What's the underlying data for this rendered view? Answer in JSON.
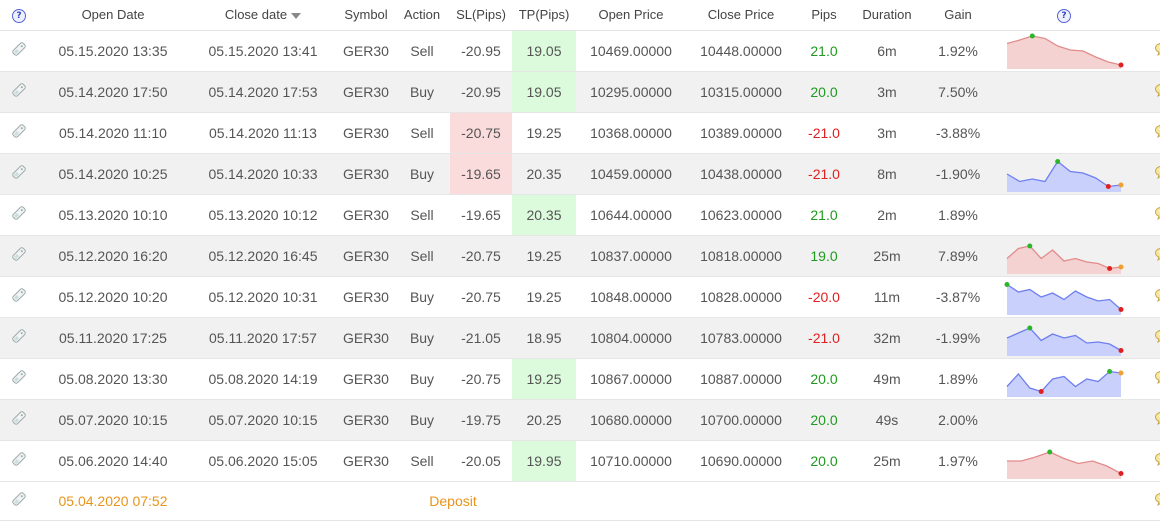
{
  "header": {
    "open_date": "Open Date",
    "close_date": "Close date",
    "symbol": "Symbol",
    "action": "Action",
    "sl": "SL(Pips)",
    "tp": "TP(Pips)",
    "open_price": "Open Price",
    "close_price": "Close Price",
    "pips": "Pips",
    "duration": "Duration",
    "gain": "Gain",
    "help": "?"
  },
  "rows": [
    {
      "open": "05.15.2020 13:35",
      "close": "05.15.2020 13:41",
      "symbol": "GER30",
      "action": "Sell",
      "sl": "-20.95",
      "tp": "19.05",
      "open_price": "10469.00000",
      "close_price": "10448.00000",
      "pips": "21.0",
      "duration": "6m",
      "gain": "1.92%",
      "hl": "tp",
      "pips_sign": "pos",
      "spark": {
        "color": "red",
        "points": [
          45,
          52,
          60,
          55,
          40,
          32,
          30,
          18,
          8,
          2
        ]
      }
    },
    {
      "open": "05.14.2020 17:50",
      "close": "05.14.2020 17:53",
      "symbol": "GER30",
      "action": "Buy",
      "sl": "-20.95",
      "tp": "19.05",
      "open_price": "10295.00000",
      "close_price": "10315.00000",
      "pips": "20.0",
      "duration": "3m",
      "gain": "7.50%",
      "hl": "tp",
      "pips_sign": "pos",
      "spark": null
    },
    {
      "open": "05.14.2020 11:10",
      "close": "05.14.2020 11:13",
      "symbol": "GER30",
      "action": "Sell",
      "sl": "-20.75",
      "tp": "19.25",
      "open_price": "10368.00000",
      "close_price": "10389.00000",
      "pips": "-21.0",
      "duration": "3m",
      "gain": "-3.88%",
      "hl": "sl",
      "pips_sign": "neg",
      "spark": null
    },
    {
      "open": "05.14.2020 10:25",
      "close": "05.14.2020 10:33",
      "symbol": "GER30",
      "action": "Buy",
      "sl": "-19.65",
      "tp": "20.35",
      "open_price": "10459.00000",
      "close_price": "10438.00000",
      "pips": "-21.0",
      "duration": "8m",
      "gain": "-1.90%",
      "hl": "sl",
      "pips_sign": "neg",
      "spark": {
        "color": "blue",
        "points": [
          30,
          15,
          20,
          15,
          55,
          35,
          32,
          22,
          5,
          8
        ]
      }
    },
    {
      "open": "05.13.2020 10:10",
      "close": "05.13.2020 10:12",
      "symbol": "GER30",
      "action": "Sell",
      "sl": "-19.65",
      "tp": "20.35",
      "open_price": "10644.00000",
      "close_price": "10623.00000",
      "pips": "21.0",
      "duration": "2m",
      "gain": "1.89%",
      "hl": "tp",
      "pips_sign": "pos",
      "spark": null
    },
    {
      "open": "05.12.2020 16:20",
      "close": "05.12.2020 16:45",
      "symbol": "GER30",
      "action": "Sell",
      "sl": "-20.75",
      "tp": "19.25",
      "open_price": "10837.00000",
      "close_price": "10818.00000",
      "pips": "19.0",
      "duration": "25m",
      "gain": "7.89%",
      "hl": "",
      "pips_sign": "pos",
      "spark": {
        "color": "red",
        "points": [
          25,
          45,
          50,
          25,
          42,
          20,
          25,
          18,
          15,
          5,
          8
        ]
      }
    },
    {
      "open": "05.12.2020 10:20",
      "close": "05.12.2020 10:31",
      "symbol": "GER30",
      "action": "Buy",
      "sl": "-20.75",
      "tp": "19.25",
      "open_price": "10848.00000",
      "close_price": "10828.00000",
      "pips": "-20.0",
      "duration": "11m",
      "gain": "-3.87%",
      "hl": "",
      "pips_sign": "neg",
      "spark": {
        "color": "blue",
        "points": [
          55,
          40,
          45,
          30,
          38,
          25,
          42,
          30,
          22,
          25,
          5
        ]
      }
    },
    {
      "open": "05.11.2020 17:25",
      "close": "05.11.2020 17:57",
      "symbol": "GER30",
      "action": "Buy",
      "sl": "-21.05",
      "tp": "18.95",
      "open_price": "10804.00000",
      "close_price": "10783.00000",
      "pips": "-21.0",
      "duration": "32m",
      "gain": "-1.99%",
      "hl": "",
      "pips_sign": "neg",
      "spark": {
        "color": "blue",
        "points": [
          30,
          40,
          50,
          25,
          38,
          30,
          35,
          20,
          22,
          18,
          5
        ]
      }
    },
    {
      "open": "05.08.2020 13:30",
      "close": "05.08.2020 14:19",
      "symbol": "GER30",
      "action": "Buy",
      "sl": "-20.75",
      "tp": "19.25",
      "open_price": "10867.00000",
      "close_price": "10887.00000",
      "pips": "20.0",
      "duration": "49m",
      "gain": "1.89%",
      "hl": "tp",
      "pips_sign": "pos",
      "spark": {
        "color": "blue",
        "points": [
          15,
          40,
          12,
          5,
          30,
          35,
          15,
          30,
          25,
          45,
          42
        ]
      }
    },
    {
      "open": "05.07.2020 10:15",
      "close": "05.07.2020 10:15",
      "symbol": "GER30",
      "action": "Buy",
      "sl": "-19.75",
      "tp": "20.25",
      "open_price": "10680.00000",
      "close_price": "10700.00000",
      "pips": "20.0",
      "duration": "49s",
      "gain": "2.00%",
      "hl": "",
      "pips_sign": "pos",
      "spark": null
    },
    {
      "open": "05.06.2020 14:40",
      "close": "05.06.2020 15:05",
      "symbol": "GER30",
      "action": "Sell",
      "sl": "-20.05",
      "tp": "19.95",
      "open_price": "10710.00000",
      "close_price": "10690.00000",
      "pips": "20.0",
      "duration": "25m",
      "gain": "1.97%",
      "hl": "tp",
      "pips_sign": "pos",
      "spark": {
        "color": "red",
        "points": [
          30,
          30,
          38,
          48,
          35,
          25,
          30,
          20,
          5
        ]
      }
    }
  ],
  "deposit": {
    "open": "05.04.2020 07:52",
    "label": "Deposit"
  },
  "icons": {
    "row_icon": "tag-icon",
    "comment_icon": "comment-bubble-icon",
    "help_icon": "help-icon"
  },
  "colors": {
    "positive": "#1f9a1f",
    "negative": "#e02020",
    "deposit": "#e8941a",
    "tp_highlight": "#dcfadc",
    "sl_highlight": "#fbdcdc"
  }
}
